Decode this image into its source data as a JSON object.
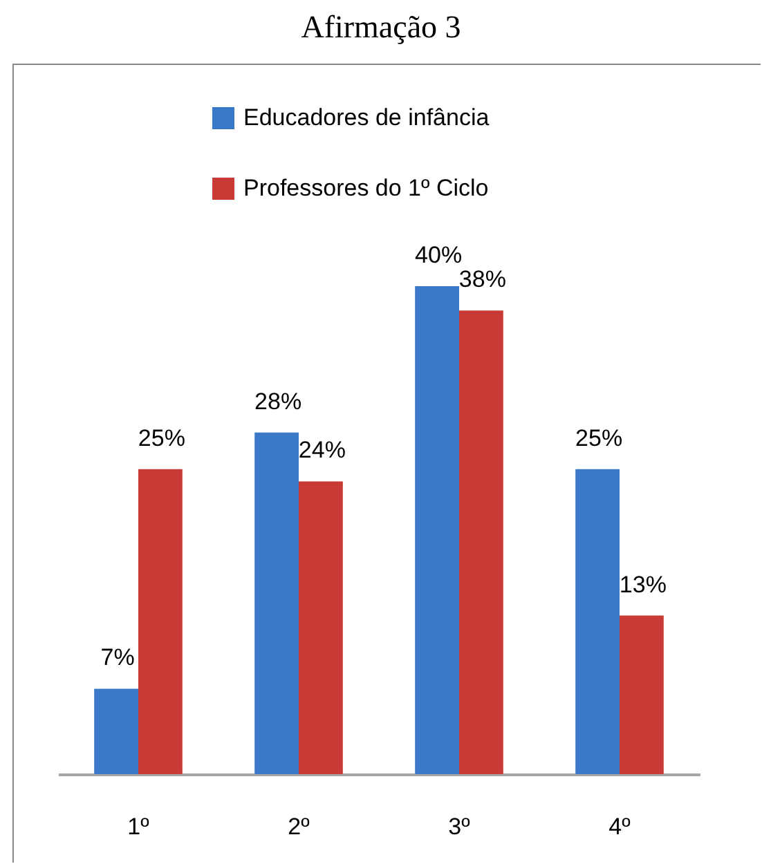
{
  "chart_data": {
    "type": "bar",
    "title": "Afirmação 3",
    "categories": [
      "1º",
      "2º",
      "3º",
      "4º"
    ],
    "series": [
      {
        "name": "Educadores de infância",
        "color": "#3a78c8",
        "values": [
          7,
          28,
          40,
          25
        ],
        "value_labels": [
          "7%",
          "28%",
          "40%",
          "25%"
        ]
      },
      {
        "name": "Professores do 1º Ciclo",
        "color": "#c83a36",
        "values": [
          25,
          24,
          38,
          13
        ],
        "value_labels": [
          "25%",
          "24%",
          "38%",
          "13%"
        ]
      }
    ],
    "legend": "top"
  }
}
